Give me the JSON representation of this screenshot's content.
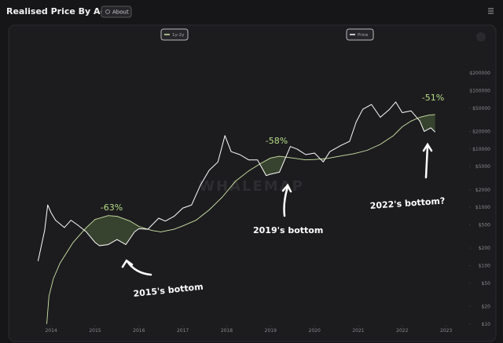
{
  "header": {
    "title": "Realised Price By Age",
    "about_button": "About"
  },
  "chart_data": {
    "type": "line",
    "log_y": true,
    "grid": false,
    "watermark": "WHALEMAP",
    "xlim": [
      2013.55,
      2023.4
    ],
    "xticks": [
      2014,
      2015,
      2016,
      2017,
      2018,
      2019,
      2020,
      2021,
      2022,
      2023
    ],
    "ylim": [
      8,
      300000
    ],
    "yticks": [
      {
        "value": 10,
        "label": "$10"
      },
      {
        "value": 20,
        "label": "$20"
      },
      {
        "value": 50,
        "label": "$50"
      },
      {
        "value": 100,
        "label": "$100"
      },
      {
        "value": 200,
        "label": "$200"
      },
      {
        "value": 500,
        "label": "$500"
      },
      {
        "value": 1000,
        "label": "$1000"
      },
      {
        "value": 2000,
        "label": "$2000"
      },
      {
        "value": 5000,
        "label": "$5000"
      },
      {
        "value": 10000,
        "label": "$10000"
      },
      {
        "value": 20000,
        "label": "$20000"
      },
      {
        "value": 50000,
        "label": "$50000"
      },
      {
        "value": 100000,
        "label": "$100000"
      },
      {
        "value": 200000,
        "label": "$200000"
      }
    ],
    "series": [
      {
        "name": "1y-2y",
        "color": "#cfe6a6",
        "x": [
          2013.9,
          2013.95,
          2014.05,
          2014.2,
          2014.5,
          2014.8,
          2015.0,
          2015.3,
          2015.5,
          2015.8,
          2016.0,
          2016.3,
          2016.5,
          2016.8,
          2017.0,
          2017.3,
          2017.6,
          2017.9,
          2018.2,
          2018.5,
          2018.8,
          2019.0,
          2019.2,
          2019.5,
          2019.8,
          2020.0,
          2020.3,
          2020.6,
          2020.9,
          2021.2,
          2021.5,
          2021.8,
          2022.0,
          2022.2,
          2022.4,
          2022.6,
          2022.75
        ],
        "values": [
          10,
          30,
          60,
          110,
          250,
          450,
          620,
          720,
          700,
          580,
          470,
          400,
          380,
          420,
          480,
          600,
          900,
          1500,
          2800,
          4200,
          5800,
          7000,
          7500,
          7000,
          6500,
          6600,
          6900,
          7600,
          8300,
          9500,
          12000,
          17000,
          24000,
          30000,
          35000,
          38000,
          39000
        ]
      },
      {
        "name": "Price",
        "color": "#ffffff",
        "x": [
          2013.7,
          2013.85,
          2013.92,
          2014.0,
          2014.1,
          2014.3,
          2014.45,
          2014.6,
          2014.8,
          2015.0,
          2015.1,
          2015.3,
          2015.5,
          2015.7,
          2015.9,
          2016.0,
          2016.2,
          2016.45,
          2016.6,
          2016.8,
          2017.0,
          2017.2,
          2017.4,
          2017.6,
          2017.8,
          2017.96,
          2018.1,
          2018.3,
          2018.5,
          2018.7,
          2018.9,
          2019.0,
          2019.2,
          2019.45,
          2019.6,
          2019.8,
          2020.0,
          2020.2,
          2020.35,
          2020.6,
          2020.8,
          2020.95,
          2021.1,
          2021.3,
          2021.5,
          2021.7,
          2021.85,
          2022.0,
          2022.2,
          2022.4,
          2022.5,
          2022.65,
          2022.75
        ],
        "values": [
          120,
          400,
          1100,
          800,
          600,
          450,
          600,
          500,
          380,
          250,
          220,
          230,
          280,
          230,
          380,
          430,
          420,
          650,
          580,
          700,
          970,
          1100,
          2400,
          4300,
          6000,
          17000,
          9000,
          8000,
          6500,
          6500,
          3500,
          3700,
          4000,
          11000,
          10000,
          8000,
          8500,
          6000,
          9000,
          11500,
          13500,
          29000,
          48000,
          58000,
          35000,
          47000,
          64000,
          42000,
          45000,
          30000,
          20000,
          23000,
          19500
        ]
      }
    ],
    "annotations": [
      "-63%",
      "-58%",
      "-51%",
      "2015's bottom",
      "2019's bottom",
      "2022's bottom?"
    ]
  }
}
